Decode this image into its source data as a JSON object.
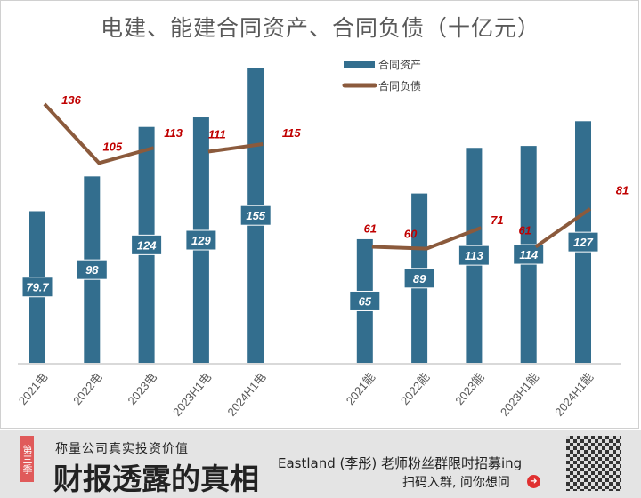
{
  "chart_data": {
    "type": "bar+line",
    "title": "电建、能建合同资产、合同负债（十亿元）",
    "categories": [
      "2021电",
      "2022电",
      "2023电",
      "2023H1电",
      "2024H1电",
      "2021能",
      "2022能",
      "2023能",
      "2023H1能",
      "2024H1能"
    ],
    "series": [
      {
        "name": "合同资产",
        "type": "bar",
        "color": "#336e8e",
        "values": [
          79.7,
          98,
          124,
          129,
          155,
          65,
          89,
          113,
          114,
          127
        ]
      },
      {
        "name": "合同负债",
        "type": "line",
        "color": "#8b5a3c",
        "values": [
          136,
          105,
          113,
          111,
          115,
          61,
          60,
          71,
          61,
          81
        ]
      }
    ],
    "legend": "top-right",
    "label_color": "#c00000",
    "grid": false,
    "ylim": [
      0,
      165
    ]
  },
  "banner": {
    "tag": "第三季",
    "subtitle": "称量公司真实投资价值",
    "headline": "财报透露的真相",
    "promo": "Eastland (李彤) 老师粉丝群限时招募ing",
    "scan": "扫码入群, 问你想问"
  }
}
